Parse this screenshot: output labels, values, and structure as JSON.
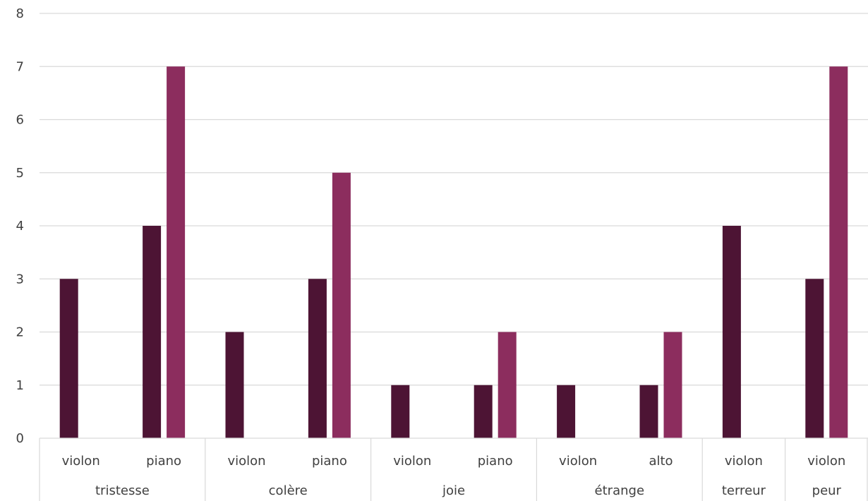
{
  "chart_data": {
    "type": "bar",
    "title": "",
    "xlabel": "",
    "ylabel": "",
    "ylim": [
      0,
      8
    ],
    "yticks": [
      "0",
      "1",
      "2",
      "3",
      "4",
      "5",
      "6",
      "7",
      "8"
    ],
    "grid": true,
    "legend": "none",
    "groups": [
      {
        "label": "tristesse",
        "subcategories": [
          "violon",
          "piano"
        ]
      },
      {
        "label": "colère",
        "subcategories": [
          "violon",
          "piano"
        ]
      },
      {
        "label": "joie",
        "subcategories": [
          "violon",
          "piano"
        ]
      },
      {
        "label": "étrange",
        "subcategories": [
          "violon",
          "alto"
        ]
      },
      {
        "label": "terreur",
        "subcategories": [
          "violon"
        ]
      },
      {
        "label": "peur",
        "subcategories": [
          "violon"
        ]
      }
    ],
    "categories": [
      "violon",
      "piano",
      "violon",
      "piano",
      "violon",
      "piano",
      "violon",
      "alto",
      "violon",
      "violon"
    ],
    "series": [
      {
        "color": "#4d1434",
        "values": [
          3,
          4,
          2,
          3,
          1,
          1,
          1,
          1,
          4,
          3
        ]
      },
      {
        "color": "#8c2d5e",
        "values": [
          null,
          7,
          null,
          5,
          null,
          2,
          null,
          2,
          null,
          7
        ]
      }
    ]
  }
}
